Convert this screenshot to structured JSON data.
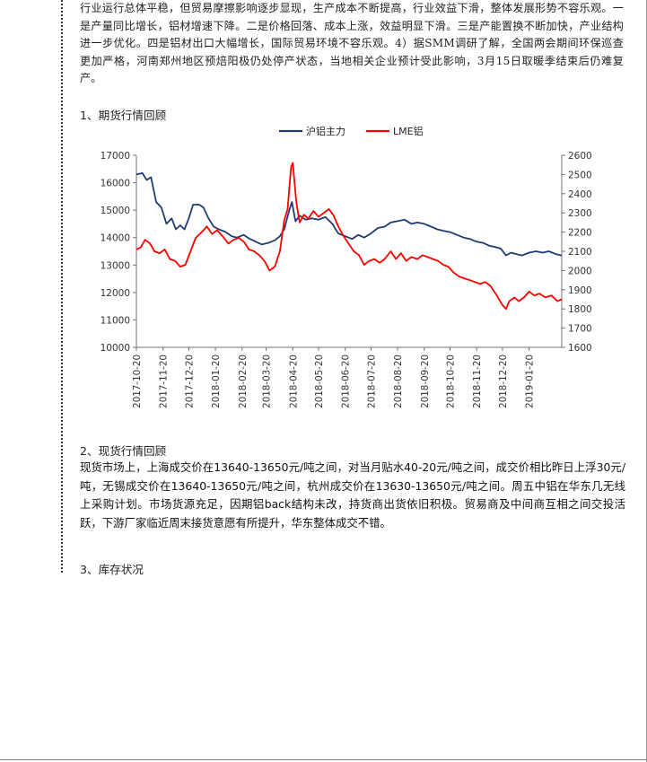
{
  "intro_text": "行业运行总体平稳，但贸易摩擦影响逐步显现，生产成本不断提高，行业效益下滑，整体发展形势不容乐观。一是产量同比增长，铝材增速下降。二是价格回落、成本上涨，效益明显下滑。三是产能置换不断加快，产业结构进一步优化。四是铝材出口大幅增长，国际贸易环境不容乐观。4）据SMM调研了解，全国两会期间环保巡查更加严格，河南郑州地区预焙阳极仍处停产状态，当地相关企业预计受此影响，3月15日取暖季结束后仍难复产。",
  "section1_title": "1、期货行情回顾",
  "section2_title": "2、现货行情回顾",
  "section2_text": "现货市场上，上海成交价在13640-13650元/吨之间，对当月贴水40-20元/吨之间，成交价相比昨日上浮30元/吨，无锡成交价在13640-13650元/吨之间，杭州成交价在13630-13650元/吨之间。周五中铝在华东几无线上采购计划。市场货源充足，因期铝back结构未改，持货商出货依旧积极。贸易商及中间商互相之间交投活跃，下游厂家临近周末接货意愿有所提升，华东整体成交不错。",
  "section3_title": "3、库存状况",
  "chart_data": {
    "type": "line",
    "title": "",
    "legend_position": "top-center",
    "x_tick_labels": [
      "2017-10-20",
      "2017-11-20",
      "2017-12-20",
      "2018-01-20",
      "2018-02-20",
      "2018-03-20",
      "2018-04-20",
      "2018-05-20",
      "2018-06-20",
      "2018-07-20",
      "2018-08-20",
      "2018-09-20",
      "2018-10-20",
      "2018-11-20",
      "2018-12-20",
      "2019-01-20"
    ],
    "y_left": {
      "min": 10000,
      "max": 17000,
      "ticks": [
        "10000",
        "11000",
        "12000",
        "13000",
        "14000",
        "15000",
        "16000",
        "17000"
      ]
    },
    "y_right": {
      "min": 1600,
      "max": 2600,
      "ticks": [
        "1600",
        "1700",
        "1800",
        "1900",
        "2000",
        "2100",
        "2200",
        "2300",
        "2400",
        "2500",
        "2600"
      ]
    },
    "x_range": [
      "2017-10-20",
      "2019-02-27"
    ],
    "series": [
      {
        "name": "沪铝主力",
        "axis": "left",
        "color": "#1f3b73",
        "points": [
          [
            "2017-10-20",
            16300
          ],
          [
            "2017-10-27",
            16350
          ],
          [
            "2017-11-01",
            16100
          ],
          [
            "2017-11-06",
            16200
          ],
          [
            "2017-11-12",
            15300
          ],
          [
            "2017-11-18",
            15100
          ],
          [
            "2017-11-24",
            14500
          ],
          [
            "2017-11-30",
            14700
          ],
          [
            "2017-12-05",
            14300
          ],
          [
            "2017-12-10",
            14450
          ],
          [
            "2017-12-15",
            14300
          ],
          [
            "2017-12-20",
            14700
          ],
          [
            "2017-12-25",
            15200
          ],
          [
            "2018-01-01",
            15200
          ],
          [
            "2018-01-06",
            15100
          ],
          [
            "2018-01-12",
            14700
          ],
          [
            "2018-01-18",
            14400
          ],
          [
            "2018-01-24",
            14300
          ],
          [
            "2018-02-01",
            14200
          ],
          [
            "2018-02-08",
            14050
          ],
          [
            "2018-02-14",
            14000
          ],
          [
            "2018-02-22",
            14100
          ],
          [
            "2018-03-01",
            13950
          ],
          [
            "2018-03-08",
            13850
          ],
          [
            "2018-03-15",
            13750
          ],
          [
            "2018-03-22",
            13800
          ],
          [
            "2018-03-30",
            13900
          ],
          [
            "2018-04-05",
            14050
          ],
          [
            "2018-04-10",
            14300
          ],
          [
            "2018-04-16",
            15000
          ],
          [
            "2018-04-19",
            15300
          ],
          [
            "2018-04-23",
            14600
          ],
          [
            "2018-04-28",
            14800
          ],
          [
            "2018-05-05",
            14650
          ],
          [
            "2018-05-12",
            14700
          ],
          [
            "2018-05-20",
            14650
          ],
          [
            "2018-05-28",
            14750
          ],
          [
            "2018-06-05",
            14500
          ],
          [
            "2018-06-12",
            14150
          ],
          [
            "2018-06-20",
            14050
          ],
          [
            "2018-06-28",
            13950
          ],
          [
            "2018-07-05",
            14100
          ],
          [
            "2018-07-12",
            14000
          ],
          [
            "2018-07-20",
            14150
          ],
          [
            "2018-07-28",
            14350
          ],
          [
            "2018-08-05",
            14400
          ],
          [
            "2018-08-12",
            14550
          ],
          [
            "2018-08-20",
            14600
          ],
          [
            "2018-08-28",
            14650
          ],
          [
            "2018-09-05",
            14500
          ],
          [
            "2018-09-12",
            14550
          ],
          [
            "2018-09-20",
            14500
          ],
          [
            "2018-09-28",
            14400
          ],
          [
            "2018-10-05",
            14300
          ],
          [
            "2018-10-12",
            14250
          ],
          [
            "2018-10-20",
            14200
          ],
          [
            "2018-10-28",
            14100
          ],
          [
            "2018-11-05",
            14000
          ],
          [
            "2018-11-12",
            13950
          ],
          [
            "2018-11-20",
            13850
          ],
          [
            "2018-11-28",
            13800
          ],
          [
            "2018-12-05",
            13700
          ],
          [
            "2018-12-12",
            13650
          ],
          [
            "2018-12-18",
            13600
          ],
          [
            "2018-12-24",
            13350
          ],
          [
            "2018-12-30",
            13450
          ],
          [
            "2019-01-05",
            13400
          ],
          [
            "2019-01-12",
            13350
          ],
          [
            "2019-01-20",
            13450
          ],
          [
            "2019-01-28",
            13500
          ],
          [
            "2019-02-05",
            13450
          ],
          [
            "2019-02-12",
            13500
          ],
          [
            "2019-02-20",
            13400
          ],
          [
            "2019-02-27",
            13350
          ]
        ]
      },
      {
        "name": "LME铝",
        "axis": "right",
        "color": "#ff0000",
        "points": [
          [
            "2017-10-20",
            2110
          ],
          [
            "2017-10-25",
            2120
          ],
          [
            "2017-10-30",
            2160
          ],
          [
            "2017-11-05",
            2140
          ],
          [
            "2017-11-10",
            2100
          ],
          [
            "2017-11-16",
            2090
          ],
          [
            "2017-11-22",
            2110
          ],
          [
            "2017-11-28",
            2060
          ],
          [
            "2017-12-04",
            2050
          ],
          [
            "2017-12-10",
            2020
          ],
          [
            "2017-12-16",
            2030
          ],
          [
            "2017-12-22",
            2100
          ],
          [
            "2017-12-28",
            2170
          ],
          [
            "2018-01-04",
            2200
          ],
          [
            "2018-01-10",
            2230
          ],
          [
            "2018-01-16",
            2190
          ],
          [
            "2018-01-22",
            2210
          ],
          [
            "2018-01-28",
            2180
          ],
          [
            "2018-02-04",
            2140
          ],
          [
            "2018-02-10",
            2160
          ],
          [
            "2018-02-16",
            2170
          ],
          [
            "2018-02-22",
            2150
          ],
          [
            "2018-02-28",
            2110
          ],
          [
            "2018-03-06",
            2100
          ],
          [
            "2018-03-12",
            2080
          ],
          [
            "2018-03-18",
            2050
          ],
          [
            "2018-03-24",
            2000
          ],
          [
            "2018-03-30",
            2020
          ],
          [
            "2018-04-05",
            2100
          ],
          [
            "2018-04-10",
            2260
          ],
          [
            "2018-04-14",
            2320
          ],
          [
            "2018-04-18",
            2540
          ],
          [
            "2018-04-20",
            2560
          ],
          [
            "2018-04-24",
            2360
          ],
          [
            "2018-04-28",
            2250
          ],
          [
            "2018-05-03",
            2290
          ],
          [
            "2018-05-08",
            2270
          ],
          [
            "2018-05-14",
            2310
          ],
          [
            "2018-05-20",
            2280
          ],
          [
            "2018-05-26",
            2300
          ],
          [
            "2018-06-01",
            2320
          ],
          [
            "2018-06-06",
            2290
          ],
          [
            "2018-06-12",
            2230
          ],
          [
            "2018-06-18",
            2180
          ],
          [
            "2018-06-24",
            2140
          ],
          [
            "2018-06-30",
            2100
          ],
          [
            "2018-07-06",
            2080
          ],
          [
            "2018-07-12",
            2030
          ],
          [
            "2018-07-18",
            2050
          ],
          [
            "2018-07-24",
            2060
          ],
          [
            "2018-07-30",
            2040
          ],
          [
            "2018-08-05",
            2060
          ],
          [
            "2018-08-12",
            2100
          ],
          [
            "2018-08-18",
            2060
          ],
          [
            "2018-08-24",
            2090
          ],
          [
            "2018-08-30",
            2050
          ],
          [
            "2018-09-05",
            2070
          ],
          [
            "2018-09-12",
            2060
          ],
          [
            "2018-09-18",
            2080
          ],
          [
            "2018-09-24",
            2070
          ],
          [
            "2018-09-30",
            2060
          ],
          [
            "2018-10-06",
            2050
          ],
          [
            "2018-10-12",
            2030
          ],
          [
            "2018-10-18",
            2020
          ],
          [
            "2018-10-24",
            1990
          ],
          [
            "2018-10-30",
            1970
          ],
          [
            "2018-11-05",
            1960
          ],
          [
            "2018-11-12",
            1950
          ],
          [
            "2018-11-18",
            1940
          ],
          [
            "2018-11-24",
            1930
          ],
          [
            "2018-11-30",
            1940
          ],
          [
            "2018-12-06",
            1920
          ],
          [
            "2018-12-12",
            1880
          ],
          [
            "2018-12-16",
            1850
          ],
          [
            "2018-12-20",
            1820
          ],
          [
            "2018-12-24",
            1800
          ],
          [
            "2018-12-28",
            1840
          ],
          [
            "2019-01-03",
            1860
          ],
          [
            "2019-01-08",
            1840
          ],
          [
            "2019-01-14",
            1860
          ],
          [
            "2019-01-20",
            1890
          ],
          [
            "2019-01-26",
            1870
          ],
          [
            "2019-02-01",
            1880
          ],
          [
            "2019-02-08",
            1860
          ],
          [
            "2019-02-15",
            1870
          ],
          [
            "2019-02-22",
            1840
          ],
          [
            "2019-02-27",
            1850
          ]
        ]
      }
    ]
  }
}
